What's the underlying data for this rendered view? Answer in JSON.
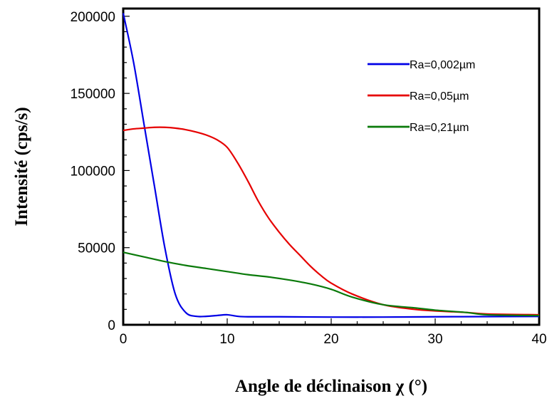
{
  "chart_data": {
    "type": "line",
    "title": "",
    "xlabel": "Angle de déclinaison χ (°)",
    "ylabel": "Intensité (cps/s)",
    "xlim": [
      0,
      40
    ],
    "ylim": [
      0,
      205000
    ],
    "x_ticks": [
      0,
      10,
      20,
      30,
      40
    ],
    "x_tick_labels": [
      "0",
      "10",
      "20",
      "30",
      "40"
    ],
    "y_ticks": [
      0,
      50000,
      100000,
      150000,
      200000
    ],
    "y_tick_labels": [
      "0",
      "50000",
      "100000",
      "150000",
      "200000"
    ],
    "grid": false,
    "legend_position": "top-right",
    "series": [
      {
        "name": "Ra=0,002µm",
        "color": "#0000e6",
        "points": [
          [
            0,
            202000
          ],
          [
            1,
            170000
          ],
          [
            2,
            130000
          ],
          [
            3,
            90000
          ],
          [
            4,
            50000
          ],
          [
            5,
            20000
          ],
          [
            6,
            8000
          ],
          [
            7,
            5500
          ],
          [
            8,
            5500
          ],
          [
            9,
            6000
          ],
          [
            10,
            6500
          ],
          [
            11,
            5500
          ],
          [
            12,
            5200
          ],
          [
            15,
            5200
          ],
          [
            20,
            5000
          ],
          [
            25,
            5000
          ],
          [
            30,
            5200
          ],
          [
            35,
            5300
          ],
          [
            40,
            5400
          ]
        ]
      },
      {
        "name": "Ra=0,05µm",
        "color": "#e60000",
        "points": [
          [
            0,
            126000
          ],
          [
            1,
            127000
          ],
          [
            2,
            127500
          ],
          [
            3,
            128000
          ],
          [
            4,
            128000
          ],
          [
            5,
            127500
          ],
          [
            6,
            126500
          ],
          [
            7,
            125000
          ],
          [
            8,
            123000
          ],
          [
            9,
            120000
          ],
          [
            10,
            115000
          ],
          [
            11,
            105000
          ],
          [
            12,
            93000
          ],
          [
            13,
            80000
          ],
          [
            14,
            69000
          ],
          [
            15,
            60000
          ],
          [
            16,
            52000
          ],
          [
            17,
            45000
          ],
          [
            18,
            38000
          ],
          [
            19,
            32000
          ],
          [
            20,
            27000
          ],
          [
            22,
            20000
          ],
          [
            25,
            13000
          ],
          [
            28,
            10000
          ],
          [
            30,
            9000
          ],
          [
            33,
            8000
          ],
          [
            35,
            7000
          ],
          [
            40,
            6500
          ]
        ]
      },
      {
        "name": "Ra=0,21µm",
        "color": "#0a7a0a",
        "points": [
          [
            0,
            47000
          ],
          [
            2,
            44000
          ],
          [
            4,
            41000
          ],
          [
            6,
            38500
          ],
          [
            8,
            36500
          ],
          [
            10,
            34500
          ],
          [
            12,
            32500
          ],
          [
            14,
            31000
          ],
          [
            16,
            29000
          ],
          [
            18,
            26500
          ],
          [
            20,
            23000
          ],
          [
            22,
            18000
          ],
          [
            25,
            13000
          ],
          [
            28,
            11000
          ],
          [
            30,
            9500
          ],
          [
            33,
            8000
          ],
          [
            35,
            6500
          ],
          [
            40,
            6000
          ]
        ]
      }
    ]
  }
}
